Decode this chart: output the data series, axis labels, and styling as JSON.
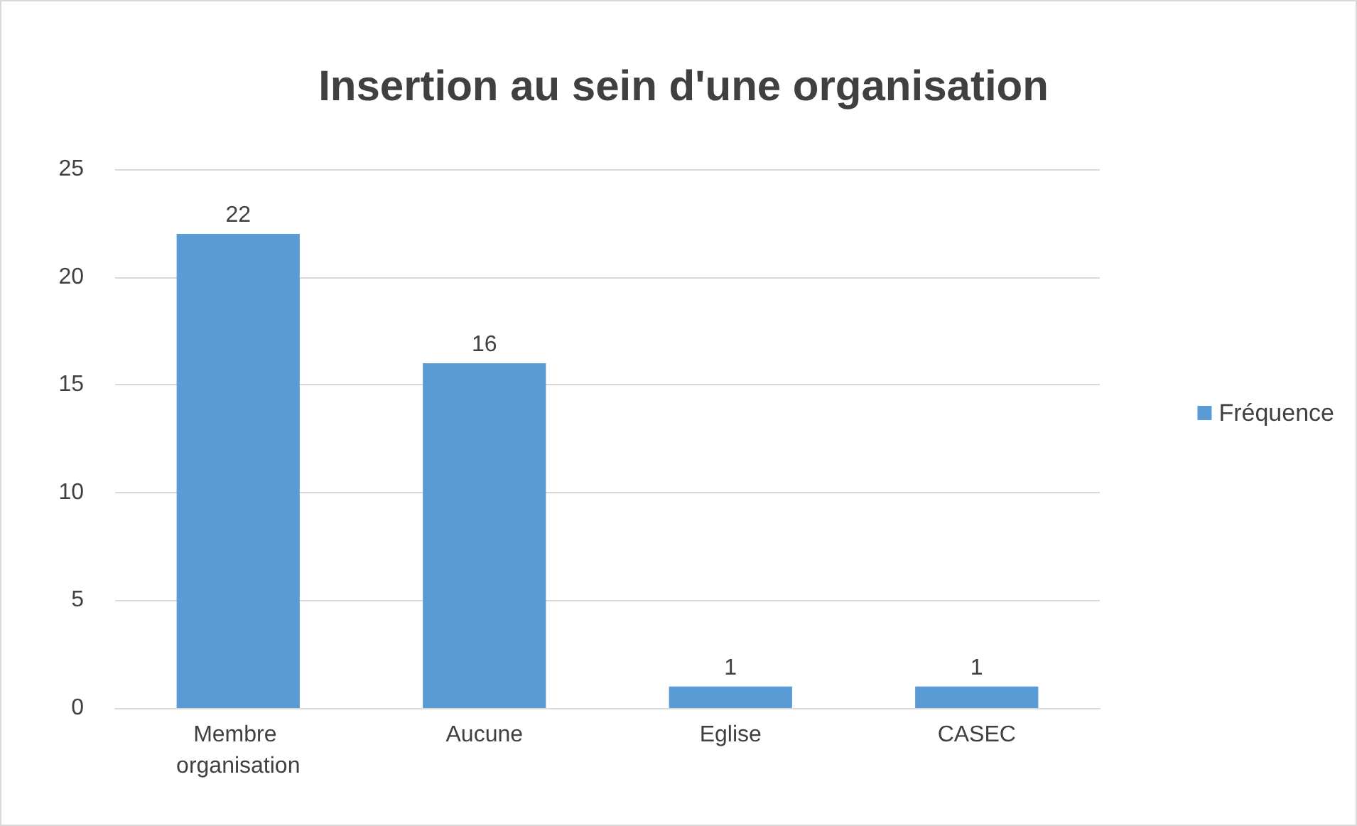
{
  "chart_data": {
    "type": "bar",
    "title": "Insertion au sein d'une organisation",
    "categories": [
      "Membre organisation",
      "Aucune",
      "Eglise",
      "CASEC"
    ],
    "series": [
      {
        "name": "Fréquence",
        "color": "#5b9bd5",
        "values": [
          22,
          16,
          1,
          1
        ]
      }
    ],
    "ylim": [
      0,
      25
    ],
    "yticks": [
      0,
      5,
      10,
      15,
      20,
      25
    ],
    "grid": "y",
    "legend": "right",
    "data_labels": true
  }
}
